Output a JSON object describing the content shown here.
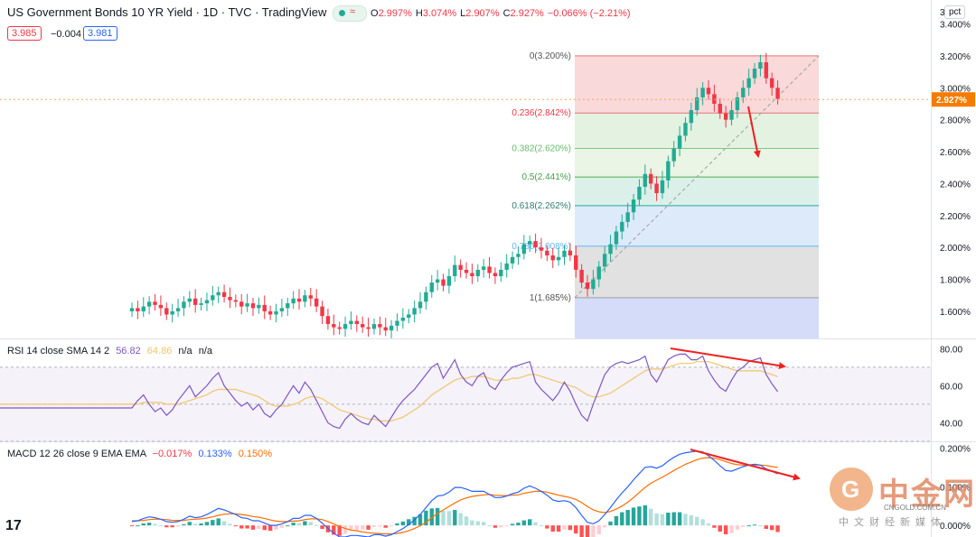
{
  "header": {
    "title": "US Government Bonds 10 YR Yield · 1D · TVC · TradingView",
    "ohlc": [
      {
        "key": "O",
        "value": "2.997%"
      },
      {
        "key": "H",
        "value": "3.074%"
      },
      {
        "key": "L",
        "value": "2.907%"
      },
      {
        "key": "C",
        "value": "2.927%"
      },
      {
        "key": "",
        "value": "−0.066% (−2.21%)"
      }
    ],
    "bid": "3.985",
    "spread": "−0.004",
    "ask": "3.981",
    "unit_label": "pct"
  },
  "colors": {
    "up": "#22ab94",
    "down": "#f23645",
    "rsi": "#7e57c2",
    "sma": "#f0c66b",
    "macd": "#2962ff",
    "signal": "#ff6d00",
    "arrow": "#f0201e"
  },
  "rsi_label": {
    "name": "RSI 14 close SMA 14 2",
    "rsi_value": "56.82",
    "sma_value": "64.86",
    "na1": "n/a",
    "na2": "n/a"
  },
  "macd_label": {
    "name": "MACD 12 26 close 9 EMA EMA",
    "hist_value": "−0.017%",
    "macd_value": "0.133%",
    "signal_value": "0.150%"
  },
  "watermark": {
    "cn": "中金网",
    "domain": "CNGOLD.COM.CN",
    "sub": "中文财经新媒体"
  },
  "chart_data": [
    {
      "type": "candlestick",
      "title": "US Government Bonds 10 YR Yield",
      "yaxis_ticks": [
        "3.400%",
        "3.200%",
        "3.000%",
        "2.800%",
        "2.600%",
        "2.400%",
        "2.200%",
        "2.000%",
        "1.800%",
        "1.600%"
      ],
      "yaxis_top_label": "3",
      "ylim": [
        1.43,
        3.55
      ],
      "last_price": {
        "label": "2.927%",
        "value": 2.927
      },
      "fib_levels": [
        {
          "label": "0(3.200%)",
          "value": 3.2
        },
        {
          "label": "0.236(2.842%)",
          "value": 2.842
        },
        {
          "label": "0.382(2.620%)",
          "value": 2.62
        },
        {
          "label": "0.5(2.441%)",
          "value": 2.441
        },
        {
          "label": "0.618(2.262%)",
          "value": 2.262
        },
        {
          "label": "0.786(2.008%)",
          "value": 2.008
        },
        {
          "label": "1(1.685%)",
          "value": 1.685
        }
      ],
      "fib_zone_colors": [
        "#f7cfd0",
        "#dcefd9",
        "#e5f3de",
        "#d2ece4",
        "#d4e5f7",
        "#dadada",
        "#c9d3f7"
      ],
      "closes": [
        1.62,
        1.6,
        1.63,
        1.66,
        1.64,
        1.62,
        1.58,
        1.6,
        1.62,
        1.66,
        1.68,
        1.64,
        1.65,
        1.67,
        1.7,
        1.72,
        1.69,
        1.67,
        1.66,
        1.63,
        1.65,
        1.62,
        1.64,
        1.6,
        1.58,
        1.6,
        1.62,
        1.65,
        1.68,
        1.66,
        1.7,
        1.68,
        1.63,
        1.57,
        1.52,
        1.5,
        1.49,
        1.52,
        1.54,
        1.52,
        1.5,
        1.49,
        1.52,
        1.5,
        1.48,
        1.51,
        1.54,
        1.56,
        1.58,
        1.62,
        1.66,
        1.72,
        1.78,
        1.8,
        1.76,
        1.82,
        1.89,
        1.86,
        1.84,
        1.82,
        1.86,
        1.88,
        1.84,
        1.82,
        1.86,
        1.9,
        1.94,
        1.96,
        2.02,
        2.04,
        2.0,
        1.98,
        1.95,
        1.92,
        1.94,
        1.98,
        1.95,
        1.86,
        1.78,
        1.74,
        1.8,
        1.88,
        1.96,
        2.02,
        2.1,
        2.16,
        2.22,
        2.3,
        2.38,
        2.46,
        2.4,
        2.34,
        2.42,
        2.54,
        2.62,
        2.7,
        2.78,
        2.86,
        2.94,
        3.0,
        2.96,
        2.9,
        2.84,
        2.8,
        2.86,
        2.94,
        3.0,
        3.06,
        3.12,
        3.16,
        3.06,
        3.0,
        2.93
      ],
      "x_start": 146,
      "x_step": 6.38
    },
    {
      "type": "line",
      "name": "RSI",
      "yaxis_ticks": [
        "80.00",
        "60.00",
        "40.00"
      ],
      "ylim": [
        30,
        85
      ],
      "bands": [
        70,
        50,
        30
      ],
      "rsi": [
        48,
        52,
        55,
        50,
        46,
        48,
        44,
        47,
        52,
        56,
        60,
        54,
        57,
        60,
        64,
        67,
        60,
        56,
        52,
        49,
        51,
        47,
        50,
        45,
        43,
        47,
        50,
        55,
        60,
        56,
        62,
        58,
        52,
        46,
        40,
        38,
        37,
        42,
        45,
        42,
        40,
        39,
        44,
        41,
        38,
        43,
        48,
        52,
        55,
        58,
        62,
        66,
        70,
        72,
        64,
        69,
        74,
        66,
        62,
        60,
        65,
        67,
        60,
        58,
        63,
        67,
        70,
        71,
        72,
        73,
        62,
        58,
        55,
        52,
        56,
        62,
        57,
        50,
        44,
        41,
        50,
        58,
        66,
        70,
        72,
        73,
        72,
        73,
        74,
        76,
        66,
        62,
        68,
        74,
        76,
        77,
        77,
        74,
        74,
        76,
        68,
        63,
        59,
        57,
        63,
        68,
        70,
        73,
        74,
        75,
        66,
        61,
        56.82
      ],
      "sma": [
        50,
        50,
        51,
        51,
        51,
        51,
        50,
        50,
        50,
        51,
        52,
        53,
        54,
        55,
        57,
        58,
        58,
        58,
        58,
        57,
        56,
        55,
        54,
        52,
        50,
        49,
        49,
        49,
        50,
        51,
        53,
        54,
        54,
        53,
        51,
        49,
        47,
        46,
        45,
        44,
        43,
        42,
        42,
        41,
        41,
        41,
        42,
        43,
        45,
        47,
        49,
        52,
        55,
        57,
        59,
        61,
        63,
        64,
        64,
        65,
        65,
        65,
        64,
        63,
        63,
        63,
        64,
        64,
        65,
        66,
        66,
        65,
        64,
        63,
        62,
        61,
        60,
        59,
        57,
        55,
        54,
        54,
        55,
        56,
        58,
        60,
        62,
        64,
        66,
        68,
        69,
        69,
        69,
        70,
        71,
        72,
        72,
        72,
        73,
        73,
        73,
        72,
        71,
        70,
        69,
        68,
        68,
        68,
        68,
        68,
        67,
        66,
        64.86
      ]
    },
    {
      "type": "line",
      "name": "MACD",
      "yaxis_ticks": [
        "0.200%",
        "0.100%",
        "0.000%"
      ],
      "ylim": [
        -0.03,
        0.215
      ],
      "macd": [
        0.01,
        0.012,
        0.018,
        0.022,
        0.02,
        0.016,
        0.01,
        0.008,
        0.01,
        0.016,
        0.024,
        0.02,
        0.022,
        0.028,
        0.036,
        0.044,
        0.04,
        0.034,
        0.028,
        0.02,
        0.018,
        0.012,
        0.012,
        0.006,
        0.0,
        0.0,
        0.004,
        0.01,
        0.018,
        0.018,
        0.026,
        0.026,
        0.018,
        0.006,
        -0.008,
        -0.02,
        -0.03,
        -0.03,
        -0.026,
        -0.026,
        -0.028,
        -0.03,
        -0.024,
        -0.024,
        -0.028,
        -0.024,
        -0.016,
        -0.008,
        0.002,
        0.014,
        0.028,
        0.046,
        0.064,
        0.076,
        0.078,
        0.086,
        0.098,
        0.098,
        0.094,
        0.088,
        0.088,
        0.088,
        0.08,
        0.072,
        0.072,
        0.076,
        0.082,
        0.086,
        0.096,
        0.102,
        0.096,
        0.088,
        0.078,
        0.066,
        0.062,
        0.064,
        0.06,
        0.046,
        0.026,
        0.008,
        0.004,
        0.012,
        0.028,
        0.046,
        0.066,
        0.084,
        0.1,
        0.118,
        0.134,
        0.15,
        0.152,
        0.148,
        0.154,
        0.166,
        0.176,
        0.184,
        0.188,
        0.19,
        0.192,
        0.19,
        0.18,
        0.168,
        0.154,
        0.142,
        0.14,
        0.146,
        0.152,
        0.156,
        0.158,
        0.156,
        0.146,
        0.14,
        0.133
      ],
      "signal": [
        0.012,
        0.012,
        0.013,
        0.015,
        0.016,
        0.016,
        0.015,
        0.013,
        0.013,
        0.013,
        0.015,
        0.016,
        0.017,
        0.019,
        0.022,
        0.026,
        0.029,
        0.03,
        0.03,
        0.028,
        0.026,
        0.023,
        0.021,
        0.018,
        0.014,
        0.011,
        0.01,
        0.01,
        0.011,
        0.012,
        0.015,
        0.017,
        0.017,
        0.015,
        0.01,
        0.004,
        -0.003,
        -0.008,
        -0.012,
        -0.014,
        -0.017,
        -0.019,
        -0.02,
        -0.021,
        -0.022,
        -0.022,
        -0.021,
        -0.018,
        -0.014,
        -0.008,
        -0.001,
        0.008,
        0.02,
        0.031,
        0.04,
        0.049,
        0.058,
        0.066,
        0.071,
        0.075,
        0.077,
        0.079,
        0.08,
        0.078,
        0.077,
        0.077,
        0.078,
        0.079,
        0.083,
        0.086,
        0.088,
        0.088,
        0.086,
        0.082,
        0.078,
        0.075,
        0.072,
        0.067,
        0.059,
        0.049,
        0.04,
        0.035,
        0.033,
        0.036,
        0.042,
        0.05,
        0.06,
        0.072,
        0.085,
        0.098,
        0.109,
        0.117,
        0.125,
        0.133,
        0.142,
        0.15,
        0.158,
        0.164,
        0.17,
        0.174,
        0.175,
        0.174,
        0.17,
        0.165,
        0.16,
        0.157,
        0.156,
        0.156,
        0.156,
        0.156,
        0.155,
        0.152,
        0.15
      ]
    }
  ]
}
